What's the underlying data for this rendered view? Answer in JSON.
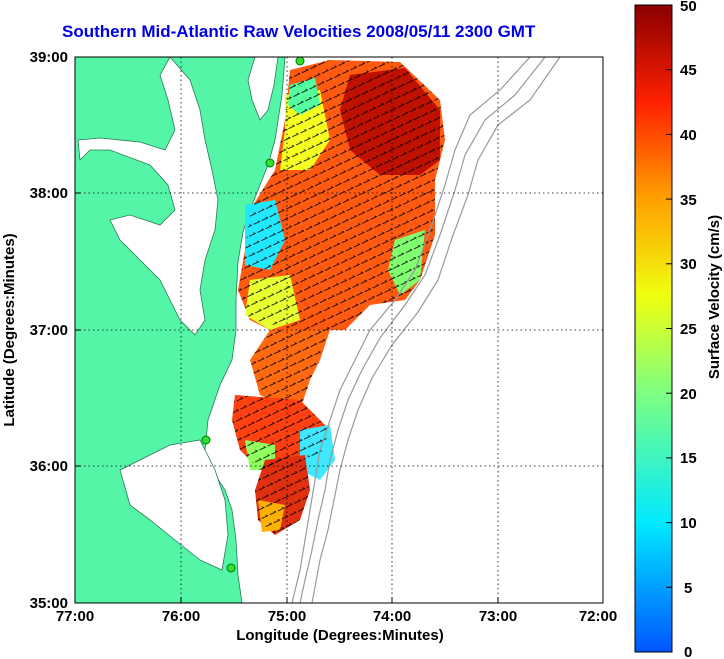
{
  "title": "Southern Mid-Atlantic Raw Velocities 2008/05/11 2300 GMT",
  "x_axis": {
    "label": "Longitude (Degrees:Minutes)",
    "ticks": [
      "77:00",
      "76:00",
      "75:00",
      "74:00",
      "73:00",
      "72:00"
    ]
  },
  "y_axis": {
    "label": "Latitude (Degrees:Minutes)",
    "ticks": [
      "39:00",
      "38:00",
      "37:00",
      "36:00",
      "35:00"
    ]
  },
  "colorbar": {
    "label": "Surface Velocity (cm/s)",
    "ticks": [
      "50",
      "45",
      "40",
      "35",
      "30",
      "25",
      "20",
      "15",
      "10",
      "5",
      "0"
    ],
    "min": 0,
    "max": 50
  },
  "colors": {
    "land": "#55f5a8",
    "water": "#ffffff",
    "title": "#0000e6",
    "grid": "#000000",
    "bathymetry": "#999999"
  },
  "grid": "dotted",
  "map_extent": {
    "lon": [
      -77,
      -72
    ],
    "lat": [
      35,
      39
    ]
  }
}
